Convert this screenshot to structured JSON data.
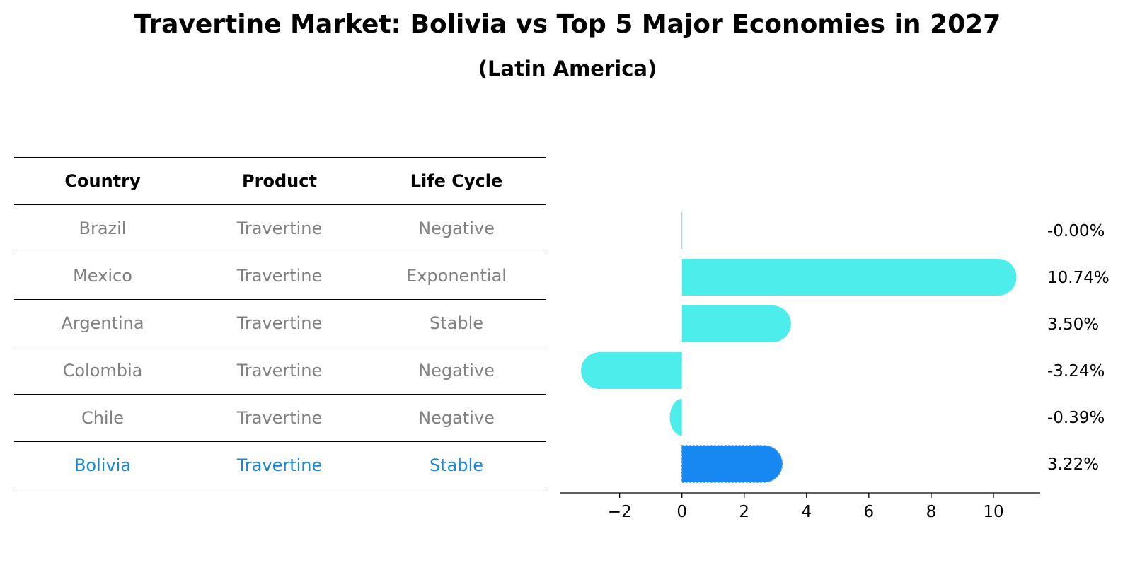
{
  "chart_data": {
    "type": "bar",
    "orientation": "horizontal",
    "title": "Travertine Market: Bolivia vs Top 5 Major Economies in 2027",
    "subtitle": "(Latin America)",
    "table": {
      "headers": [
        "Country",
        "Product",
        "Life Cycle"
      ],
      "rows": [
        {
          "country": "Brazil",
          "product": "Travertine",
          "life_cycle": "Negative"
        },
        {
          "country": "Mexico",
          "product": "Travertine",
          "life_cycle": "Exponential"
        },
        {
          "country": "Argentina",
          "product": "Travertine",
          "life_cycle": "Stable"
        },
        {
          "country": "Colombia",
          "product": "Travertine",
          "life_cycle": "Negative"
        },
        {
          "country": "Chile",
          "product": "Travertine",
          "life_cycle": "Negative"
        },
        {
          "country": "Bolivia",
          "product": "Travertine",
          "life_cycle": "Stable",
          "highlight": true
        }
      ]
    },
    "categories": [
      "Brazil",
      "Mexico",
      "Argentina",
      "Colombia",
      "Chile",
      "Bolivia"
    ],
    "values": [
      -0.001,
      10.74,
      3.5,
      -3.24,
      -0.39,
      3.22
    ],
    "value_labels": [
      "-0.00%",
      "10.74%",
      "3.50%",
      "-3.24%",
      "-0.39%",
      "3.22%"
    ],
    "xlim": [
      -3.9,
      11.5
    ],
    "xticks": [
      -2,
      0,
      2,
      4,
      6,
      8,
      10
    ],
    "xtick_labels": [
      "−2",
      "0",
      "2",
      "4",
      "6",
      "8",
      "10"
    ],
    "grid": false,
    "colors": {
      "default": "#4dedeb",
      "highlight": "#1787f1",
      "highlight_text": "#1a86d8",
      "muted_text": "#808080"
    }
  }
}
